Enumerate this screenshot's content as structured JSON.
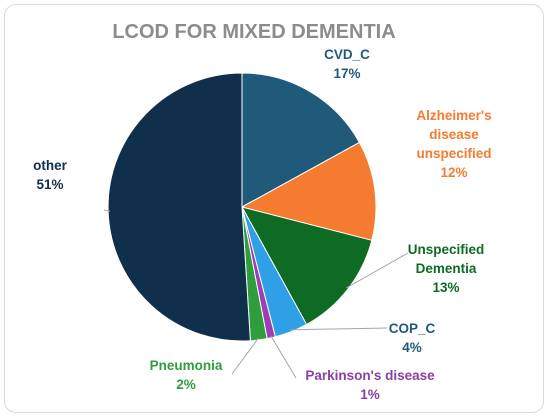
{
  "chart_data": {
    "type": "pie",
    "title": "LCOD FOR MIXED DEMENTIA",
    "slices": [
      {
        "name": "CVD_C",
        "value": 17,
        "label": "17%",
        "color": "#1f5a7a"
      },
      {
        "name": "Alzheimer's disease unspecified",
        "value": 12,
        "label": "12%",
        "color": "#f47b2f"
      },
      {
        "name": "Unspecified Dementia",
        "value": 13,
        "label": "13%",
        "color": "#0e6b24"
      },
      {
        "name": "COP_C",
        "value": 4,
        "label": "4%",
        "color": "#2fa0e6"
      },
      {
        "name": "Parkinson's disease",
        "value": 1,
        "label": "1%",
        "color": "#9b3fb3"
      },
      {
        "name": "Pneumonia",
        "value": 2,
        "label": "2%",
        "color": "#2e9e3d"
      },
      {
        "name": "other",
        "value": 51,
        "label": "51%",
        "color": "#0f2f4a"
      }
    ],
    "label_colors": {
      "CVD_C": "#1f5a7a",
      "Alzheimer's disease unspecified": "#f47b2f",
      "Unspecified Dementia": "#0e6b24",
      "COP_C": "#1f5a7a",
      "Parkinson's disease": "#8b3fa3",
      "Pneumonia": "#2e9e3d",
      "other": "#0f2f4a"
    }
  }
}
